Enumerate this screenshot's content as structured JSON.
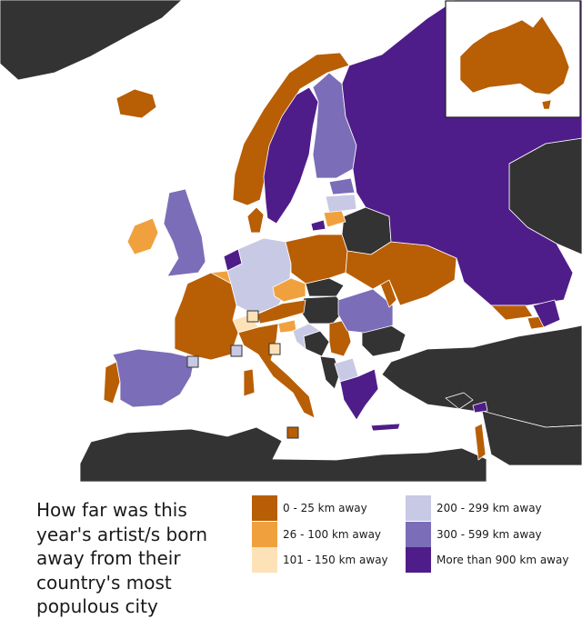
{
  "title": "How far was this year's artist/s born away from their country's most populous city",
  "colors": {
    "sea": "#ffffff",
    "non_participant": "#333333",
    "border": "#ffffff",
    "ocean_outline": "#777777"
  },
  "legend": [
    {
      "label": "0 - 25 km away",
      "color": "#b85e05"
    },
    {
      "label": "26 - 100 km away",
      "color": "#f0a13e"
    },
    {
      "label": "101 - 150 km away",
      "color": "#fde2b8"
    },
    {
      "label": "200 - 299 km away",
      "color": "#c8c9e4"
    },
    {
      "label": "300 - 599 km away",
      "color": "#7b6db8"
    },
    {
      "label": "More than 900 km away",
      "color": "#4f1d89"
    }
  ],
  "inset": {
    "country": "Australia",
    "category": "0 - 25 km away"
  },
  "countries": [
    {
      "name": "Australia",
      "category": "0 - 25 km away"
    },
    {
      "name": "Iceland",
      "category": "0 - 25 km away"
    },
    {
      "name": "Norway",
      "category": "0 - 25 km away"
    },
    {
      "name": "Sweden",
      "category": "More than 900 km away"
    },
    {
      "name": "Finland",
      "category": "300 - 599 km away"
    },
    {
      "name": "Estonia",
      "category": "300 - 599 km away"
    },
    {
      "name": "Latvia",
      "category": "200 - 299 km away"
    },
    {
      "name": "Lithuania",
      "category": "26 - 100 km away"
    },
    {
      "name": "Denmark",
      "category": "0 - 25 km away"
    },
    {
      "name": "Ireland",
      "category": "26 - 100 km away"
    },
    {
      "name": "United Kingdom",
      "category": "300 - 599 km away"
    },
    {
      "name": "Netherlands",
      "category": "More than 900 km away"
    },
    {
      "name": "Belgium",
      "category": "26 - 100 km away"
    },
    {
      "name": "Germany",
      "category": "200 - 299 km away"
    },
    {
      "name": "Poland",
      "category": "0 - 25 km away"
    },
    {
      "name": "Czechia",
      "category": "26 - 100 km away"
    },
    {
      "name": "Austria",
      "category": "0 - 25 km away"
    },
    {
      "name": "Switzerland",
      "category": "101 - 150 km away"
    },
    {
      "name": "France",
      "category": "0 - 25 km away"
    },
    {
      "name": "Spain",
      "category": "300 - 599 km away"
    },
    {
      "name": "Portugal",
      "category": "0 - 25 km away"
    },
    {
      "name": "Italy",
      "category": "0 - 25 km away"
    },
    {
      "name": "Slovenia",
      "category": "26 - 100 km away"
    },
    {
      "name": "Croatia",
      "category": "200 - 299 km away"
    },
    {
      "name": "Serbia",
      "category": "0 - 25 km away"
    },
    {
      "name": "Romania",
      "category": "300 - 599 km away"
    },
    {
      "name": "Moldova",
      "category": "0 - 25 km away"
    },
    {
      "name": "Ukraine",
      "category": "0 - 25 km away"
    },
    {
      "name": "Russia",
      "category": "More than 900 km away"
    },
    {
      "name": "Georgia",
      "category": "0 - 25 km away"
    },
    {
      "name": "Armenia",
      "category": "0 - 25 km away"
    },
    {
      "name": "Azerbaijan",
      "category": "More than 900 km away"
    },
    {
      "name": "North Macedonia",
      "category": "200 - 299 km away"
    },
    {
      "name": "Greece",
      "category": "More than 900 km away"
    },
    {
      "name": "Cyprus",
      "category": "More than 900 km away"
    },
    {
      "name": "Israel",
      "category": "0 - 25 km away"
    },
    {
      "name": "Malta",
      "category": "0 - 25 km away"
    },
    {
      "name": "San Marino",
      "category": "101 - 150 km away"
    },
    {
      "name": "Monaco",
      "category": "200 - 299 km away"
    },
    {
      "name": "Andorra",
      "category": "200 - 299 km away"
    },
    {
      "name": "Belarus",
      "category": "Non-participant"
    },
    {
      "name": "Hungary",
      "category": "Non-participant"
    },
    {
      "name": "Slovakia",
      "category": "Non-participant"
    },
    {
      "name": "Bosnia and Herzegovina",
      "category": "Non-participant"
    },
    {
      "name": "Montenegro",
      "category": "Non-participant"
    },
    {
      "name": "Albania",
      "category": "Non-participant"
    },
    {
      "name": "Bulgaria",
      "category": "Non-participant"
    },
    {
      "name": "Turkey",
      "category": "Non-participant"
    }
  ]
}
